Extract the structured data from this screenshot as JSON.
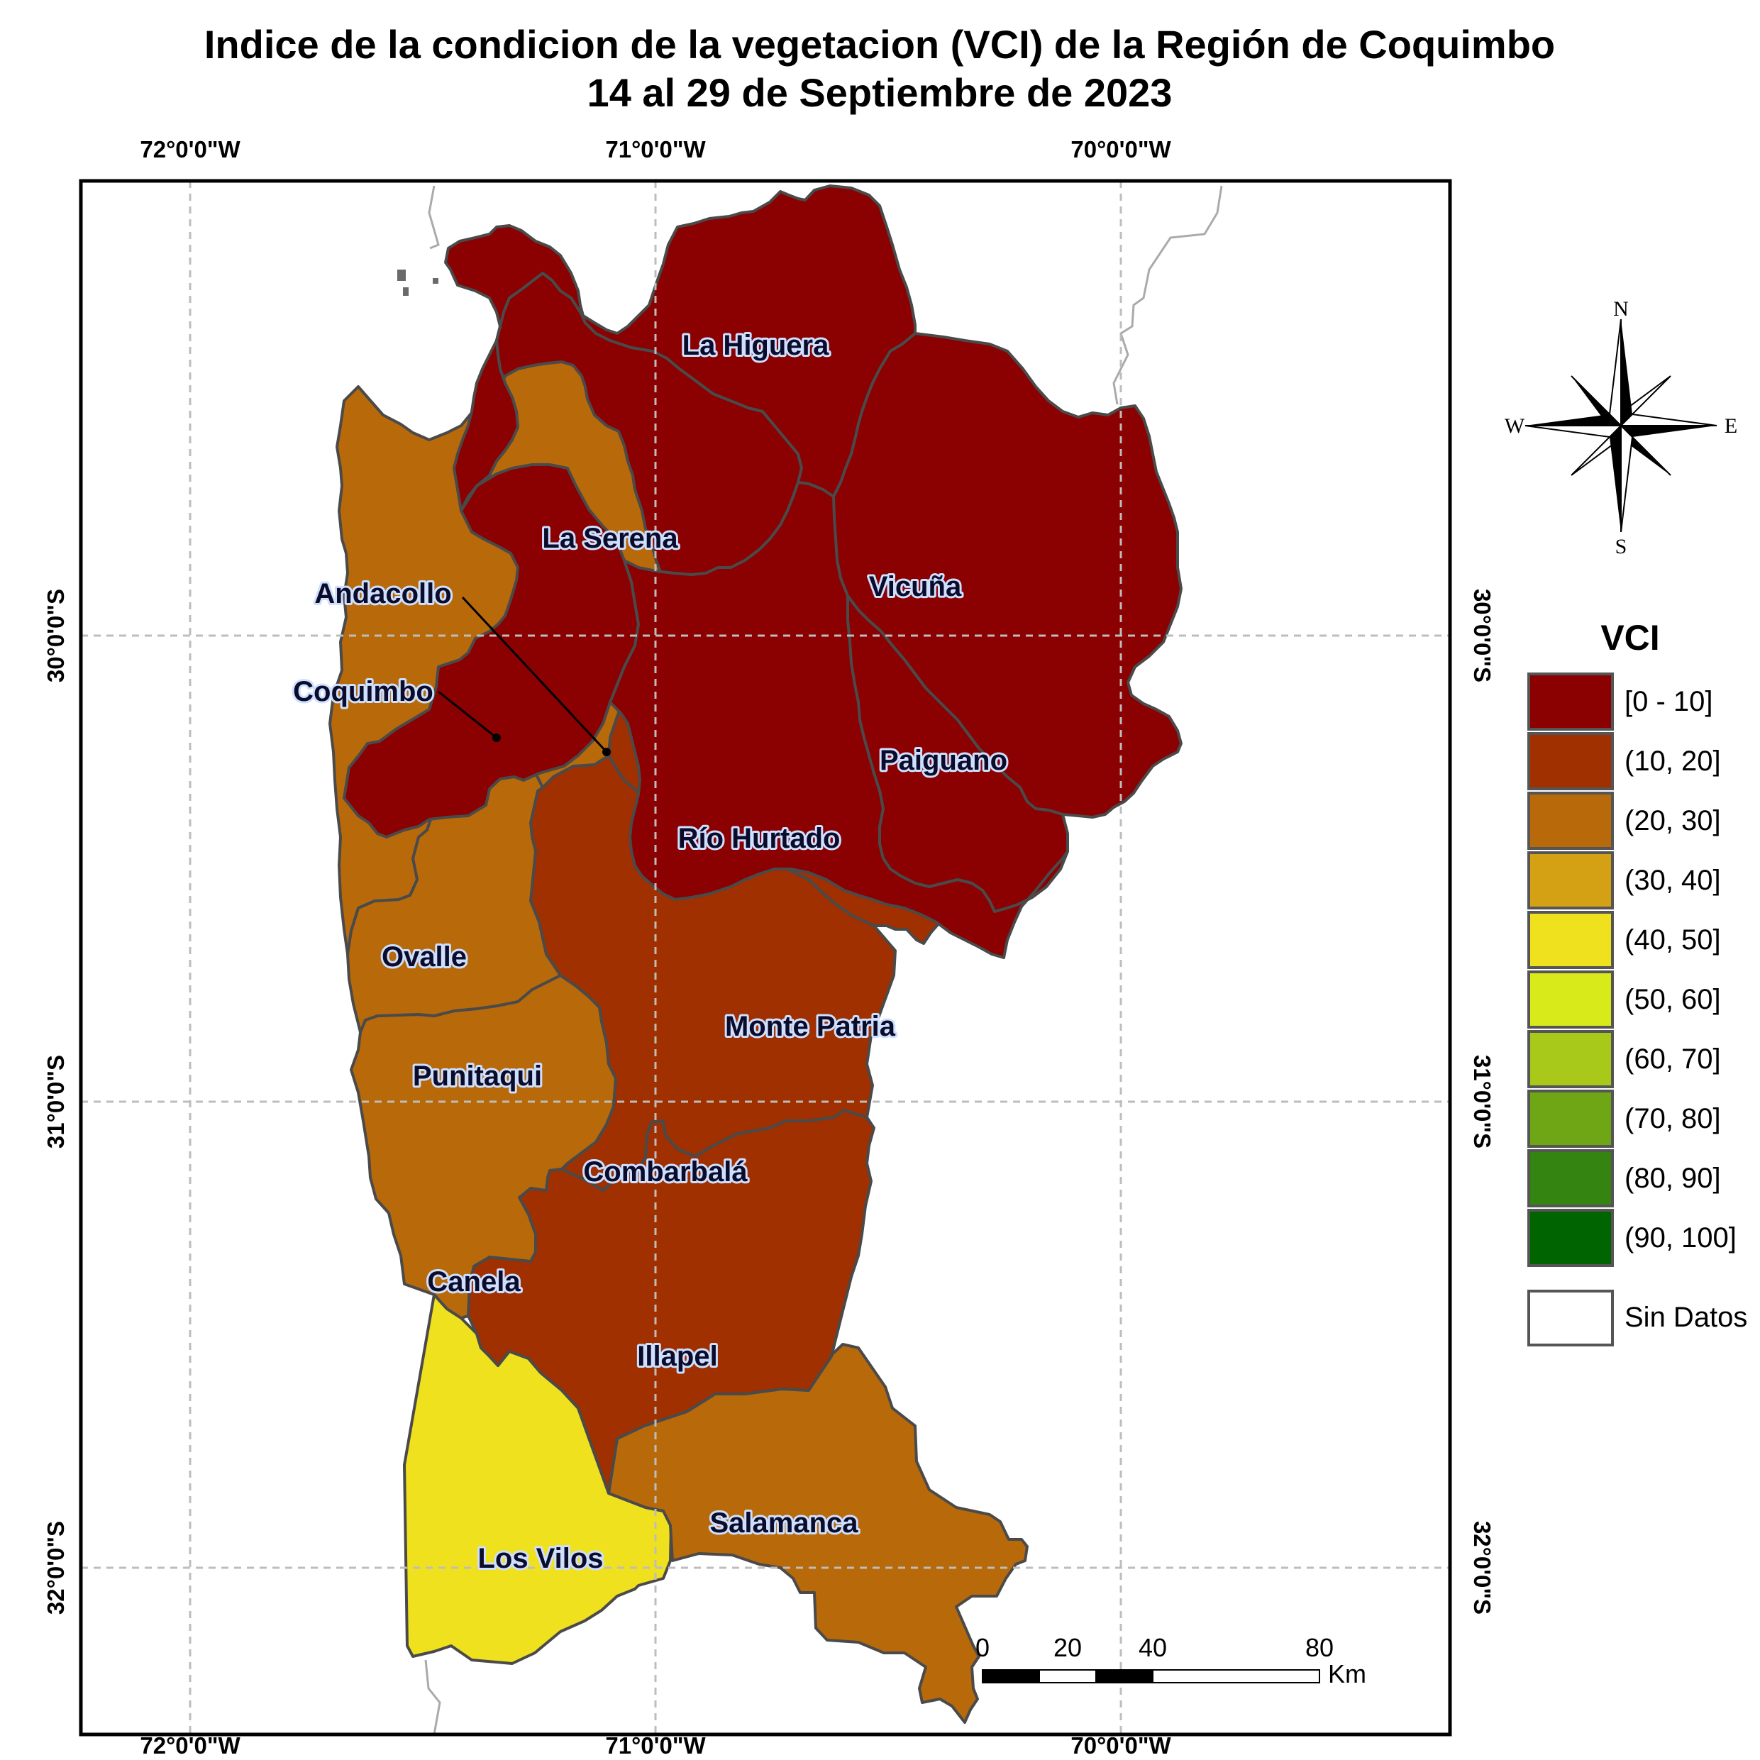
{
  "title": {
    "line1": "Indice de la condicion de la vegetacion (VCI) de la Región de Coquimbo",
    "line2": "14 al 29 de Septiembre de 2023"
  },
  "graticule": {
    "lon_labels": [
      "72°0'0\"W",
      "71°0'0\"W",
      "70°0'0\"W"
    ],
    "lat_labels": [
      "30°0'0\"S",
      "31°0'0\"S",
      "32°0'0\"S"
    ]
  },
  "municipalities": [
    {
      "name": "La Higuera",
      "vci_class": "[0 - 10]"
    },
    {
      "name": "La Serena",
      "vci_class": "[0 - 10]"
    },
    {
      "name": "Vicuña",
      "vci_class": "[0 - 10]"
    },
    {
      "name": "Andacollo",
      "vci_class": "[0 - 10]"
    },
    {
      "name": "Coquimbo",
      "vci_class": "[0 - 10]"
    },
    {
      "name": "Paiguano",
      "vci_class": "[0 - 10]"
    },
    {
      "name": "Río Hurtado",
      "vci_class": "[0 - 10]"
    },
    {
      "name": "Ovalle",
      "vci_class": "(20, 30]"
    },
    {
      "name": "Monte Patria",
      "vci_class": "(10, 20]"
    },
    {
      "name": "Punitaqui",
      "vci_class": "(20, 30]"
    },
    {
      "name": "Combarbalá",
      "vci_class": "(10, 20]"
    },
    {
      "name": "Canela",
      "vci_class": "(20, 30]"
    },
    {
      "name": "Illapel",
      "vci_class": "(10, 20]"
    },
    {
      "name": "Salamanca",
      "vci_class": "(20, 30]"
    },
    {
      "name": "Los Vilos",
      "vci_class": "(40, 50]"
    }
  ],
  "compass": {
    "n": "N",
    "s": "S",
    "e": "E",
    "w": "W"
  },
  "legend": {
    "title": "VCI",
    "items": [
      {
        "label": "[0 - 10]",
        "color": "#8b0000"
      },
      {
        "label": "(10, 20]",
        "color": "#a03000"
      },
      {
        "label": "(20, 30]",
        "color": "#b86a0a"
      },
      {
        "label": "(30, 40]",
        "color": "#d4a115"
      },
      {
        "label": "(40, 50]",
        "color": "#f0e11e"
      },
      {
        "label": "(50, 60]",
        "color": "#d9ea1a"
      },
      {
        "label": "(60, 70]",
        "color": "#a8c81a"
      },
      {
        "label": "(70, 80]",
        "color": "#6ea615"
      },
      {
        "label": "(80, 90]",
        "color": "#338410"
      },
      {
        "label": "(90, 100]",
        "color": "#006400"
      }
    ],
    "nodata_label": "Sin Datos"
  },
  "scalebar": {
    "ticks": [
      "0",
      "20",
      "40",
      "80"
    ],
    "unit": "Km"
  }
}
